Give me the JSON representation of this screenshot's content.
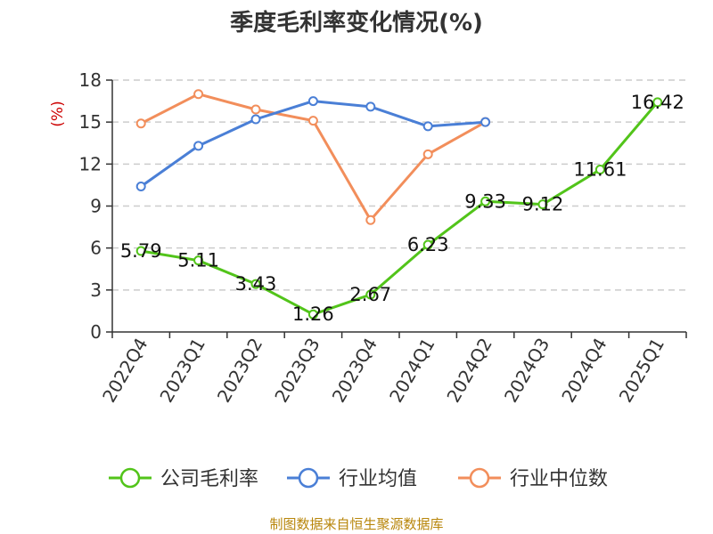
{
  "chart_data": {
    "type": "line",
    "title": "季度毛利率变化情况(%)",
    "ylabel": "(%)",
    "xlabel": "",
    "categories": [
      "2022Q4",
      "2023Q1",
      "2023Q2",
      "2023Q3",
      "2023Q4",
      "2024Q1",
      "2024Q2",
      "2024Q3",
      "2024Q4",
      "2025Q1"
    ],
    "ylim": [
      0,
      18
    ],
    "yticks": [
      0,
      3,
      6,
      9,
      12,
      15,
      18
    ],
    "grid": "horizontal dashed",
    "legend_position": "bottom",
    "series": [
      {
        "name": "公司毛利率",
        "color": "#52c41a",
        "values": [
          5.79,
          5.11,
          3.43,
          1.26,
          2.67,
          6.23,
          9.33,
          9.12,
          11.61,
          16.42
        ],
        "labels": [
          "5.79",
          "5.11",
          "3.43",
          "1.26",
          "2.67",
          "6.23",
          "9.33",
          "9.12",
          "11.61",
          "16.42"
        ]
      },
      {
        "name": "行业均值",
        "color": "#4a7fd6",
        "values": [
          10.4,
          13.3,
          15.2,
          16.5,
          16.1,
          14.7,
          15.0,
          null,
          null,
          null
        ]
      },
      {
        "name": "行业中位数",
        "color": "#f28e5b",
        "values": [
          14.9,
          17.0,
          15.9,
          15.1,
          8.0,
          12.7,
          15.0,
          null,
          null,
          null
        ]
      }
    ]
  },
  "source_text": "制图数据来自恒生聚源数据库"
}
